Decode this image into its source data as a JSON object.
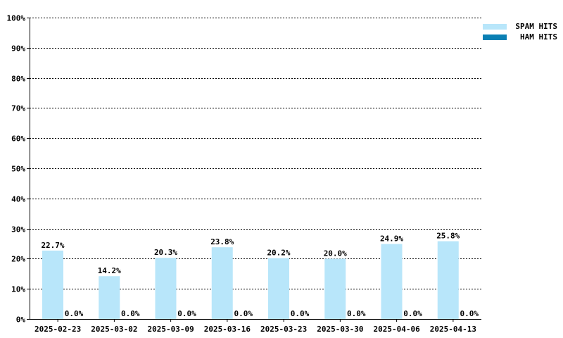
{
  "chart_data": {
    "type": "bar",
    "categories": [
      "2025-02-23",
      "2025-03-02",
      "2025-03-09",
      "2025-03-16",
      "2025-03-23",
      "2025-03-30",
      "2025-04-06",
      "2025-04-13"
    ],
    "series": [
      {
        "name": "SPAM HITS",
        "color": "#b8e6fa",
        "values": [
          22.7,
          14.2,
          20.3,
          23.8,
          20.2,
          20.0,
          24.9,
          25.8
        ],
        "labels": [
          "22.7%",
          "14.2%",
          "20.3%",
          "23.8%",
          "20.2%",
          "20.0%",
          "24.9%",
          "25.8%"
        ]
      },
      {
        "name": "HAM HITS",
        "color": "#0a7fb3",
        "values": [
          0,
          0,
          0,
          0,
          0,
          0,
          0,
          0
        ],
        "labels": [
          "0.0%",
          "0.0%",
          "0.0%",
          "0.0%",
          "0.0%",
          "0.0%",
          "0.0%",
          "0.0%"
        ]
      }
    ],
    "yticks": [
      "0%",
      "10%",
      "20%",
      "30%",
      "40%",
      "50%",
      "60%",
      "70%",
      "80%",
      "90%",
      "100%"
    ],
    "ylim": [
      0,
      100
    ],
    "grid": true,
    "legend_position": "top-right"
  },
  "legend": [
    {
      "label": "SPAM HITS",
      "color": "#b8e6fa"
    },
    {
      "label": "HAM HITS",
      "color": "#0a7fb3"
    }
  ]
}
